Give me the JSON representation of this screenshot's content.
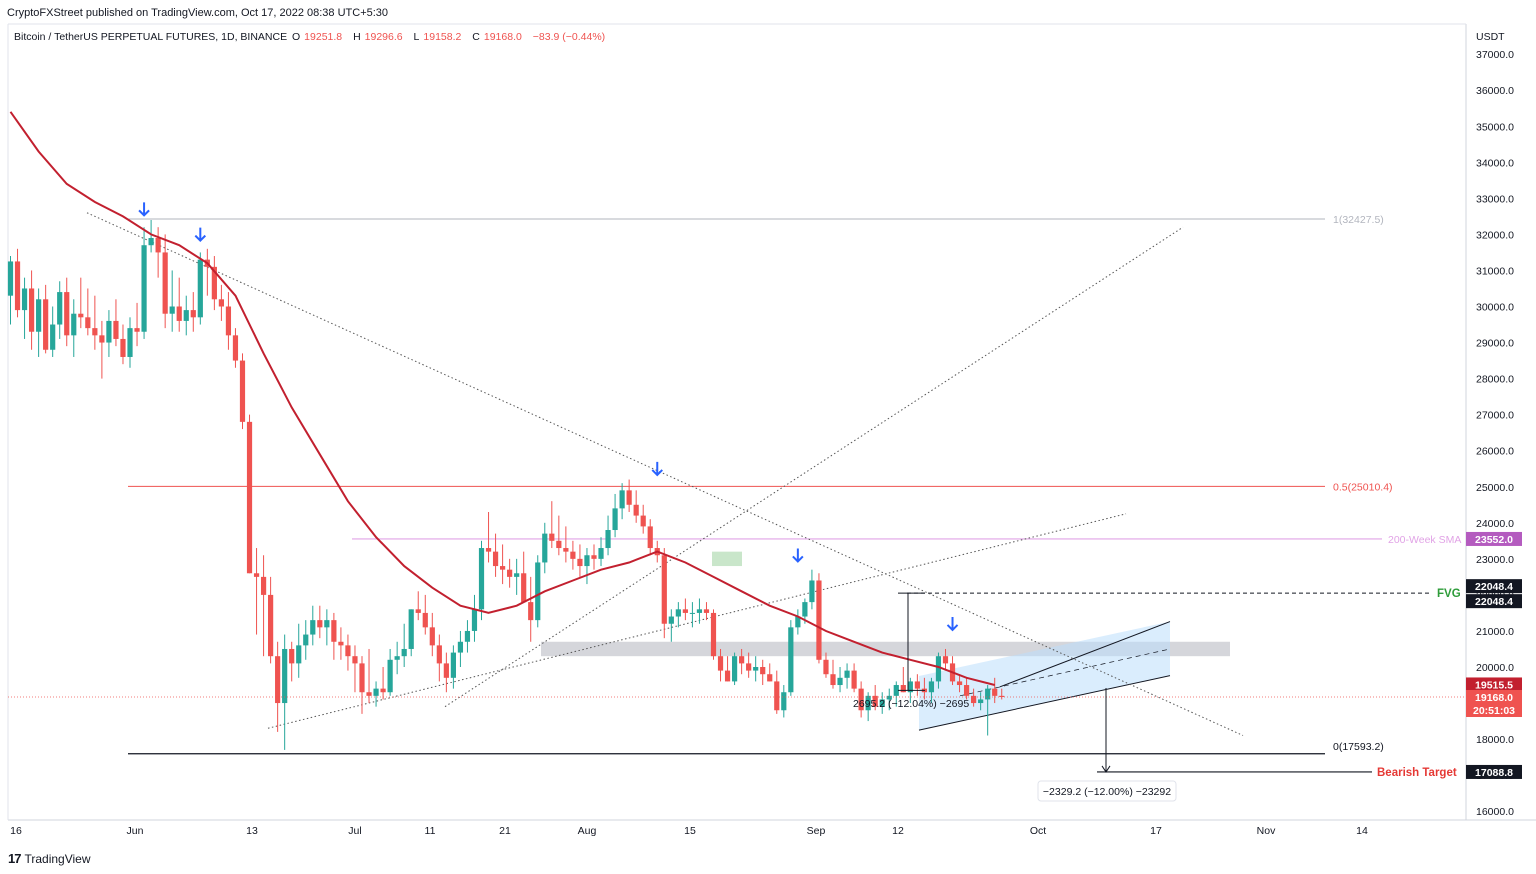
{
  "header": {
    "published": "CryptoFXStreet published on TradingView.com, Oct 17, 2022 08:38 UTC+5:30"
  },
  "legend": {
    "symbol": "Bitcoin / TetherUS PERPETUAL FUTURES, 1D, BINANCE",
    "o_label": "O",
    "o": "19251.8",
    "h_label": "H",
    "h": "19296.6",
    "l_label": "L",
    "l": "19158.2",
    "c_label": "C",
    "c": "19168.0",
    "change": "−83.9 (−0.44%)"
  },
  "footer": {
    "brand": "TradingView",
    "logo": "17"
  },
  "colors": {
    "up": "#26a69a",
    "down": "#ef5350",
    "ema": "#c2202f",
    "sma200": "#e1a3e6",
    "fvg": "#2e9c3a",
    "bearish": "#e53935",
    "arrow": "#2962ff"
  },
  "chart_data": {
    "type": "candlestick",
    "ylabel": "USDT",
    "yticks": [
      16000,
      17000,
      18000,
      19000,
      20000,
      21000,
      22000,
      23000,
      24000,
      25000,
      26000,
      27000,
      28000,
      29000,
      30000,
      31000,
      32000,
      33000,
      34000,
      35000,
      36000,
      37000
    ],
    "ylim": [
      15800,
      37600
    ],
    "xticks": [
      "16",
      "Jun",
      "13",
      "Jul",
      "11",
      "21",
      "Aug",
      "15",
      "Sep",
      "12",
      "Oct",
      "17",
      "Nov",
      "14"
    ],
    "candles": [
      [
        30300,
        31400,
        29500,
        31250
      ],
      [
        31250,
        31600,
        29700,
        29900
      ],
      [
        29900,
        30800,
        29100,
        30500
      ],
      [
        30500,
        31000,
        28800,
        29300
      ],
      [
        29300,
        30500,
        28600,
        30200
      ],
      [
        30200,
        30600,
        28700,
        28800
      ],
      [
        28800,
        30000,
        28600,
        29500
      ],
      [
        29500,
        30700,
        29100,
        30400
      ],
      [
        30400,
        30800,
        28900,
        29200
      ],
      [
        29200,
        30200,
        28600,
        29800
      ],
      [
        29800,
        30800,
        29400,
        29700
      ],
      [
        29700,
        30500,
        29200,
        29400
      ],
      [
        29400,
        30300,
        28800,
        29200
      ],
      [
        29200,
        29600,
        28000,
        29000
      ],
      [
        29000,
        29900,
        28600,
        29600
      ],
      [
        29600,
        30200,
        28900,
        29100
      ],
      [
        29100,
        29500,
        28400,
        28600
      ],
      [
        28600,
        29700,
        28300,
        29400
      ],
      [
        29400,
        30100,
        28900,
        29300
      ],
      [
        29300,
        32200,
        29100,
        31700
      ],
      [
        31700,
        32400,
        31500,
        31900
      ],
      [
        31900,
        32200,
        30800,
        31500
      ],
      [
        31500,
        32000,
        29400,
        29800
      ],
      [
        29800,
        31000,
        29300,
        30000
      ],
      [
        30000,
        30800,
        29300,
        29600
      ],
      [
        29600,
        30300,
        29200,
        29900
      ],
      [
        29900,
        30400,
        29300,
        29700
      ],
      [
        29700,
        31500,
        29500,
        31300
      ],
      [
        31300,
        31600,
        30300,
        31100
      ],
      [
        31100,
        31400,
        29900,
        30200
      ],
      [
        30200,
        30600,
        29600,
        30000
      ],
      [
        30000,
        30400,
        28800,
        29200
      ],
      [
        29200,
        29400,
        28300,
        28500
      ],
      [
        28500,
        28700,
        26600,
        26800
      ],
      [
        26800,
        27000,
        22600,
        22600
      ],
      [
        22600,
        23300,
        20900,
        22500
      ],
      [
        22500,
        23100,
        20300,
        22000
      ],
      [
        22000,
        22500,
        20100,
        20300
      ],
      [
        20300,
        20700,
        18200,
        19000
      ],
      [
        19000,
        20900,
        17700,
        20500
      ],
      [
        20500,
        20700,
        19600,
        20100
      ],
      [
        20100,
        21200,
        19700,
        20600
      ],
      [
        20600,
        21300,
        20200,
        20900
      ],
      [
        20900,
        21700,
        20600,
        21300
      ],
      [
        21300,
        21700,
        20800,
        21100
      ],
      [
        21100,
        21600,
        20600,
        21300
      ],
      [
        21300,
        21500,
        20200,
        20700
      ],
      [
        20700,
        21100,
        20200,
        20600
      ],
      [
        20600,
        20900,
        19900,
        20300
      ],
      [
        20300,
        20600,
        19300,
        20100
      ],
      [
        20100,
        20300,
        18700,
        19300
      ],
      [
        19300,
        20500,
        19000,
        19200
      ],
      [
        19200,
        19600,
        18900,
        19400
      ],
      [
        19400,
        20000,
        19100,
        19300
      ],
      [
        19300,
        20500,
        19200,
        20200
      ],
      [
        20200,
        20700,
        19800,
        20300
      ],
      [
        20300,
        21200,
        20000,
        20500
      ],
      [
        20500,
        21600,
        20300,
        21600
      ],
      [
        21600,
        22100,
        21300,
        21500
      ],
      [
        21500,
        22000,
        20900,
        21100
      ],
      [
        21100,
        21500,
        20300,
        20600
      ],
      [
        20600,
        20900,
        19600,
        20100
      ],
      [
        20100,
        20400,
        19300,
        19700
      ],
      [
        19700,
        20600,
        19400,
        20400
      ],
      [
        20400,
        21000,
        20000,
        20700
      ],
      [
        20700,
        21300,
        20400,
        21000
      ],
      [
        21000,
        22000,
        20700,
        21600
      ],
      [
        21600,
        23500,
        21300,
        23300
      ],
      [
        23300,
        24300,
        22900,
        23200
      ],
      [
        23200,
        23700,
        22500,
        22800
      ],
      [
        22800,
        23400,
        22300,
        22700
      ],
      [
        22700,
        23000,
        22200,
        22500
      ],
      [
        22500,
        23000,
        22000,
        22600
      ],
      [
        22600,
        23200,
        21900,
        21800
      ],
      [
        21800,
        22500,
        20700,
        21300
      ],
      [
        21300,
        23100,
        21100,
        22900
      ],
      [
        22900,
        24000,
        22600,
        23700
      ],
      [
        23700,
        24600,
        23300,
        23500
      ],
      [
        23500,
        24200,
        23100,
        23300
      ],
      [
        23300,
        23900,
        22900,
        23200
      ],
      [
        23200,
        23500,
        22700,
        23000
      ],
      [
        23000,
        23400,
        22500,
        22800
      ],
      [
        22800,
        23300,
        22300,
        23100
      ],
      [
        23100,
        23400,
        22700,
        23000
      ],
      [
        23000,
        23600,
        22800,
        23300
      ],
      [
        23300,
        24200,
        23100,
        23800
      ],
      [
        23800,
        24800,
        23600,
        24400
      ],
      [
        24400,
        25100,
        24100,
        24900
      ],
      [
        24900,
        25200,
        24300,
        24500
      ],
      [
        24500,
        24900,
        24000,
        24200
      ],
      [
        24200,
        24500,
        23700,
        23900
      ],
      [
        23900,
        24100,
        23100,
        23300
      ],
      [
        23300,
        23500,
        22900,
        23100
      ],
      [
        23100,
        23300,
        20800,
        21200
      ],
      [
        21200,
        21600,
        20700,
        21400
      ],
      [
        21400,
        21800,
        21100,
        21600
      ],
      [
        21600,
        21900,
        21300,
        21500
      ],
      [
        21500,
        21800,
        21100,
        21500
      ],
      [
        21500,
        21900,
        21200,
        21600
      ],
      [
        21600,
        21800,
        21300,
        21500
      ],
      [
        21500,
        21600,
        20200,
        20300
      ],
      [
        20300,
        20500,
        19600,
        19900
      ],
      [
        19900,
        20300,
        19600,
        19600
      ],
      [
        19600,
        20400,
        19500,
        20300
      ],
      [
        20300,
        20500,
        19800,
        20100
      ],
      [
        20100,
        20400,
        19700,
        19900
      ],
      [
        19900,
        20300,
        19600,
        20000
      ],
      [
        20000,
        20200,
        19500,
        19800
      ],
      [
        19800,
        20100,
        19600,
        19600
      ],
      [
        19600,
        19900,
        18700,
        18800
      ],
      [
        18800,
        19500,
        18600,
        19300
      ],
      [
        19300,
        21300,
        19200,
        21100
      ],
      [
        21100,
        21600,
        20900,
        21400
      ],
      [
        21400,
        21900,
        21200,
        21800
      ],
      [
        21800,
        22700,
        21600,
        22400
      ],
      [
        22400,
        22600,
        20100,
        20200
      ],
      [
        20200,
        20400,
        19700,
        19800
      ],
      [
        19800,
        20200,
        19400,
        19500
      ],
      [
        19500,
        20000,
        19300,
        19700
      ],
      [
        19700,
        20100,
        19400,
        19900
      ],
      [
        19900,
        20100,
        19300,
        19400
      ],
      [
        19400,
        19600,
        18600,
        18800
      ],
      [
        18800,
        19300,
        18500,
        19200
      ],
      [
        19200,
        19500,
        18800,
        18900
      ],
      [
        18900,
        19300,
        18700,
        19100
      ],
      [
        19100,
        19400,
        18800,
        19200
      ],
      [
        19200,
        19600,
        18900,
        19500
      ],
      [
        19500,
        20000,
        19300,
        19300
      ],
      [
        19300,
        19700,
        19000,
        19600
      ],
      [
        19600,
        19800,
        19200,
        19400
      ],
      [
        19400,
        19700,
        19100,
        19300
      ],
      [
        19300,
        19700,
        19000,
        19600
      ],
      [
        19600,
        20400,
        19400,
        20300
      ],
      [
        20300,
        20500,
        19900,
        20100
      ],
      [
        20100,
        20300,
        19500,
        19600
      ],
      [
        19600,
        19800,
        19300,
        19500
      ],
      [
        19500,
        19700,
        19100,
        19200
      ],
      [
        19200,
        19400,
        18900,
        19000
      ],
      [
        19000,
        19300,
        18800,
        19100
      ],
      [
        19100,
        19500,
        18100,
        19400
      ],
      [
        19400,
        19700,
        19000,
        19200
      ],
      [
        19200,
        19400,
        19100,
        19168
      ]
    ],
    "ema_points": [
      [
        0,
        35400
      ],
      [
        4,
        34300
      ],
      [
        8,
        33400
      ],
      [
        12,
        32900
      ],
      [
        16,
        32500
      ],
      [
        20,
        32000
      ],
      [
        24,
        31700
      ],
      [
        28,
        31200
      ],
      [
        32,
        30300
      ],
      [
        36,
        28700
      ],
      [
        40,
        27200
      ],
      [
        44,
        25900
      ],
      [
        48,
        24600
      ],
      [
        52,
        23600
      ],
      [
        56,
        22800
      ],
      [
        60,
        22200
      ],
      [
        64,
        21700
      ],
      [
        68,
        21500
      ],
      [
        72,
        21700
      ],
      [
        76,
        22100
      ],
      [
        80,
        22400
      ],
      [
        84,
        22700
      ],
      [
        88,
        22900
      ],
      [
        92,
        23200
      ],
      [
        96,
        22900
      ],
      [
        100,
        22500
      ],
      [
        104,
        22100
      ],
      [
        108,
        21700
      ],
      [
        112,
        21400
      ],
      [
        116,
        21000
      ],
      [
        120,
        20700
      ],
      [
        124,
        20400
      ],
      [
        128,
        20200
      ],
      [
        132,
        20000
      ],
      [
        136,
        19700
      ],
      [
        140,
        19500
      ]
    ],
    "levels": {
      "fib_1": "1(32427.5)",
      "fib_05": "0.5(25010.4)",
      "fib_0": "0(17593.2)",
      "sma200_label": "200-Week SMA",
      "fvg_label": "FVG",
      "bearish_label": "Bearish Target",
      "measure_1": "2695.2 (−12.04%) −2695",
      "measure_2": "−2329.2 (−12.00%) −23292"
    },
    "level_values": {
      "fib_1": 32427.5,
      "fib_05": 25010.4,
      "fib_0": 17593.2,
      "sma200": 23552.0,
      "fvg": 22048.4,
      "bearish": 17088.8,
      "last": 19168.0
    },
    "price_tags": [
      "23552.0",
      "22048.4",
      "22048.4",
      "19515.5",
      "19168.0",
      "20:51:03",
      "17088.8"
    ],
    "arrows_at": [
      [
        19,
        32500
      ],
      [
        27,
        31800
      ],
      [
        92,
        25300
      ],
      [
        112,
        22900
      ],
      [
        134,
        21000
      ]
    ]
  }
}
